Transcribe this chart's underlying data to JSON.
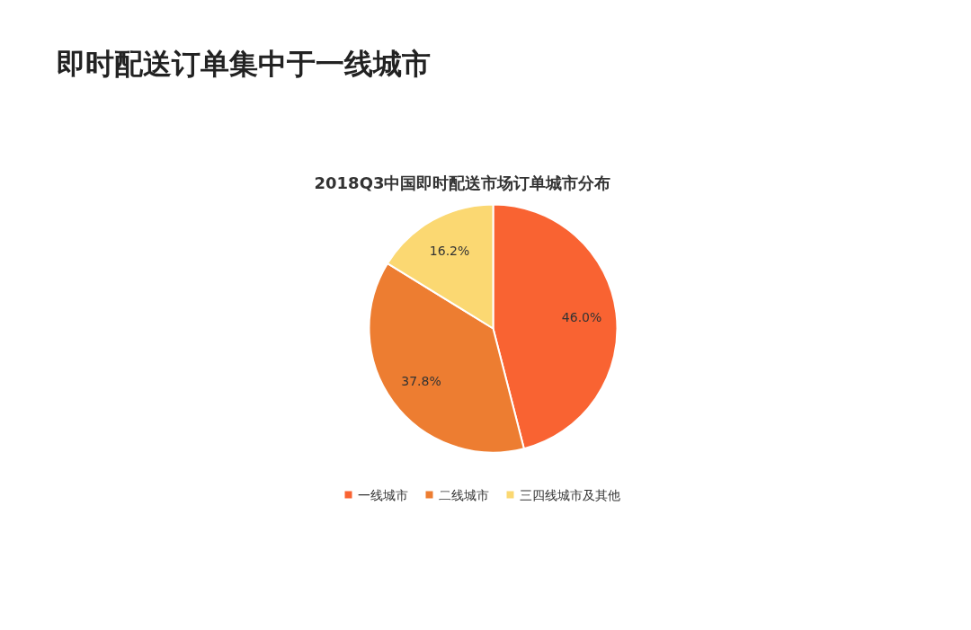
{
  "chart_data": {
    "type": "pie",
    "title": "即时配送订单集中于一线城市",
    "subtitle": "2018Q3中国即时配送市场订单城市分布",
    "categories": [
      "一线城市",
      "二线城市",
      "三四线城市及其他"
    ],
    "values": [
      46.0,
      37.8,
      16.2
    ],
    "colors": [
      "#f96332",
      "#ed7d31",
      "#fbd872"
    ],
    "value_labels": [
      "46.0%",
      "37.8%",
      "16.2%"
    ],
    "legend": "bottom"
  }
}
